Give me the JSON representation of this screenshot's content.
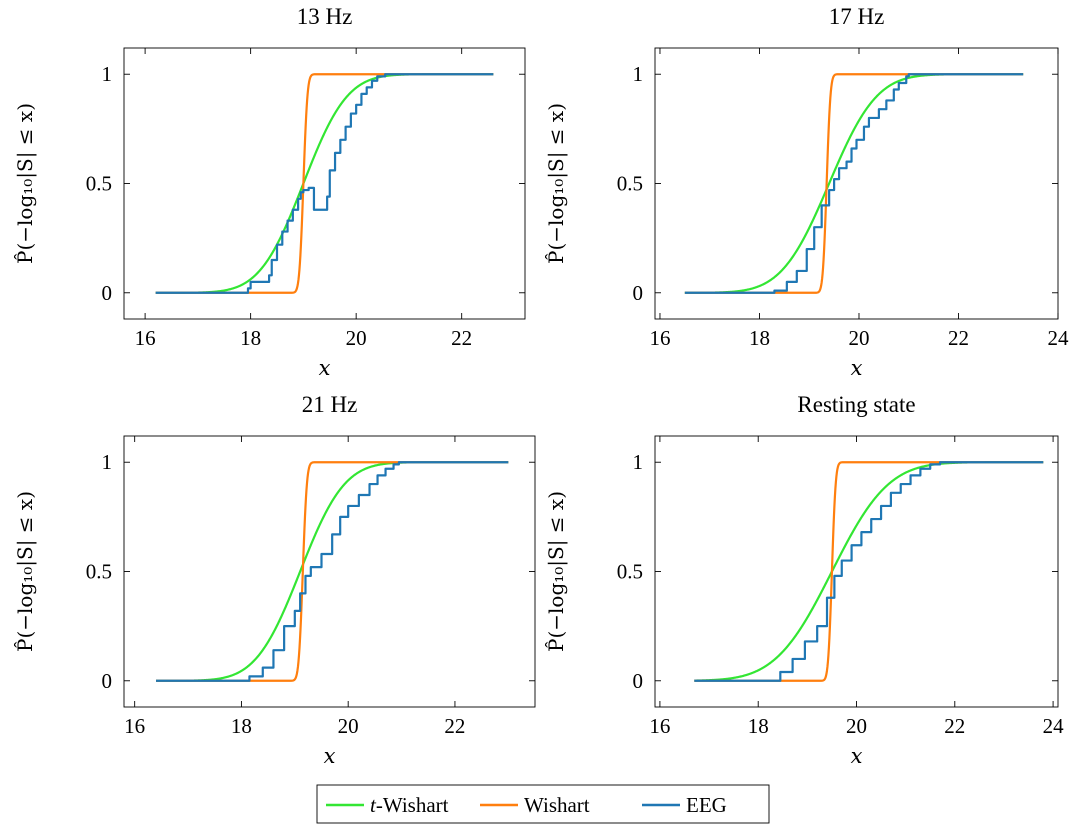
{
  "legend": [
    {
      "label_prefix": "t",
      "label": "-Wishart",
      "color": "#33e633"
    },
    {
      "label_prefix": "",
      "label": "Wishart",
      "color": "#ff7f0e"
    },
    {
      "label_prefix": "",
      "label": "EEG",
      "color": "#1f77b4"
    }
  ],
  "colors": {
    "t_wishart": "#33e633",
    "wishart": "#ff7f0e",
    "eeg": "#1f77b4"
  },
  "ylabel": "P̂(−log₁₀|S| ≤ x)",
  "chart_data": [
    {
      "type": "line",
      "title": "13 Hz",
      "xlabel": "x",
      "ylabel": "P̂(−log₁₀|S| ≤ x)",
      "xlim": [
        15.6,
        23.2
      ],
      "ylim": [
        -0.12,
        1.12
      ],
      "xticks": [
        16,
        18,
        20,
        22
      ],
      "yticks": [
        0,
        0.5,
        1
      ],
      "ytick_labels": [
        "0",
        "0.5",
        "1"
      ],
      "series": [
        {
          "name": "t-Wishart",
          "kind": "normal_cdf",
          "mu": 19.0,
          "sigma": 0.65,
          "x_range": [
            16.2,
            22.6
          ]
        },
        {
          "name": "Wishart",
          "kind": "normal_cdf",
          "mu": 19.0,
          "sigma": 0.06,
          "x_range": [
            16.2,
            22.6
          ]
        },
        {
          "name": "EEG",
          "kind": "step",
          "x": [
            16.2,
            17.95,
            18.0,
            18.35,
            18.4,
            18.5,
            18.6,
            18.7,
            18.8,
            18.9,
            18.95,
            19.0,
            19.1,
            19.2,
            19.45,
            19.5,
            19.6,
            19.7,
            19.8,
            19.9,
            20.0,
            20.1,
            20.2,
            20.3,
            20.4,
            20.55,
            22.6
          ],
          "y": [
            0,
            0.02,
            0.05,
            0.08,
            0.15,
            0.22,
            0.28,
            0.33,
            0.38,
            0.43,
            0.46,
            0.47,
            0.48,
            0.38,
            0.44,
            0.56,
            0.64,
            0.7,
            0.76,
            0.82,
            0.86,
            0.91,
            0.94,
            0.97,
            0.99,
            1.0,
            1.0
          ]
        }
      ]
    },
    {
      "type": "line",
      "title": "17 Hz",
      "xlabel": "x",
      "ylabel": "P̂(−log₁₀|S| ≤ x)",
      "xlim": [
        15.9,
        24.0
      ],
      "ylim": [
        -0.12,
        1.12
      ],
      "xticks": [
        16,
        18,
        20,
        22,
        24
      ],
      "yticks": [
        0,
        0.5,
        1
      ],
      "ytick_labels": [
        "0",
        "0.5",
        "1"
      ],
      "series": [
        {
          "name": "t-Wishart",
          "kind": "normal_cdf",
          "mu": 19.4,
          "sigma": 0.75,
          "x_range": [
            16.5,
            23.3
          ]
        },
        {
          "name": "Wishart",
          "kind": "normal_cdf",
          "mu": 19.35,
          "sigma": 0.06,
          "x_range": [
            16.5,
            23.3
          ]
        },
        {
          "name": "EEG",
          "kind": "step",
          "x": [
            16.5,
            18.3,
            18.55,
            18.75,
            18.95,
            19.1,
            19.25,
            19.4,
            19.5,
            19.6,
            19.75,
            19.85,
            19.95,
            20.1,
            20.2,
            20.4,
            20.55,
            20.7,
            20.8,
            20.95,
            21.0,
            23.3
          ],
          "y": [
            0,
            0.01,
            0.05,
            0.1,
            0.2,
            0.3,
            0.4,
            0.47,
            0.52,
            0.57,
            0.6,
            0.66,
            0.7,
            0.76,
            0.8,
            0.84,
            0.88,
            0.93,
            0.96,
            0.99,
            1.0,
            1.0
          ]
        }
      ]
    },
    {
      "type": "line",
      "title": "21 Hz",
      "xlabel": "x",
      "ylabel": "P̂(−log₁₀|S| ≤ x)",
      "xlim": [
        15.8,
        23.5
      ],
      "ylim": [
        -0.12,
        1.12
      ],
      "xticks": [
        16,
        18,
        20,
        22
      ],
      "yticks": [
        0,
        0.5,
        1
      ],
      "ytick_labels": [
        "0",
        "0.5",
        "1"
      ],
      "series": [
        {
          "name": "t-Wishart",
          "kind": "normal_cdf",
          "mu": 19.1,
          "sigma": 0.65,
          "x_range": [
            16.4,
            23.0
          ]
        },
        {
          "name": "Wishart",
          "kind": "normal_cdf",
          "mu": 19.15,
          "sigma": 0.06,
          "x_range": [
            16.4,
            23.0
          ]
        },
        {
          "name": "EEG",
          "kind": "step",
          "x": [
            16.4,
            18.15,
            18.4,
            18.6,
            18.8,
            19.0,
            19.1,
            19.2,
            19.3,
            19.5,
            19.7,
            19.85,
            20.0,
            20.2,
            20.4,
            20.55,
            20.7,
            20.85,
            20.95,
            23.0
          ],
          "y": [
            0,
            0.02,
            0.06,
            0.14,
            0.25,
            0.32,
            0.4,
            0.48,
            0.52,
            0.58,
            0.67,
            0.75,
            0.8,
            0.85,
            0.9,
            0.94,
            0.97,
            0.99,
            1.0,
            1.0
          ]
        }
      ]
    },
    {
      "type": "line",
      "title": "Resting state",
      "xlabel": "x",
      "ylabel": "P̂(−log₁₀|S| ≤ x)",
      "xlim": [
        15.9,
        24.1
      ],
      "ylim": [
        -0.12,
        1.12
      ],
      "xticks": [
        16,
        18,
        20,
        22,
        24
      ],
      "yticks": [
        0,
        0.5,
        1
      ],
      "ytick_labels": [
        "0",
        "0.5",
        "1"
      ],
      "series": [
        {
          "name": "t-Wishart",
          "kind": "normal_cdf",
          "mu": 19.5,
          "sigma": 0.9,
          "x_range": [
            16.7,
            23.8
          ]
        },
        {
          "name": "Wishart",
          "kind": "normal_cdf",
          "mu": 19.5,
          "sigma": 0.06,
          "x_range": [
            16.7,
            23.8
          ]
        },
        {
          "name": "EEG",
          "kind": "step",
          "x": [
            16.7,
            18.45,
            18.7,
            18.95,
            19.2,
            19.4,
            19.55,
            19.7,
            19.9,
            20.1,
            20.3,
            20.5,
            20.7,
            20.9,
            21.1,
            21.3,
            21.5,
            21.7,
            23.8
          ],
          "y": [
            0,
            0.04,
            0.1,
            0.18,
            0.25,
            0.38,
            0.48,
            0.55,
            0.62,
            0.68,
            0.74,
            0.8,
            0.86,
            0.9,
            0.94,
            0.97,
            0.99,
            1.0,
            1.0
          ]
        }
      ]
    }
  ]
}
